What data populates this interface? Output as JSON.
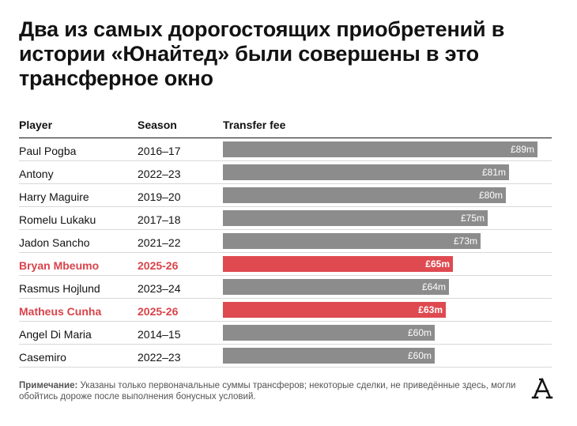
{
  "title": "Два из самых дорогостоящих приобретений в истории «Юнайтед» были совершены в это трансферное окно",
  "headers": {
    "player": "Player",
    "season": "Season",
    "fee": "Transfer fee"
  },
  "colors": {
    "bar": "#8c8c8c",
    "highlight": "#de4a50",
    "highlight_text": "#d9434a"
  },
  "chart_data": {
    "type": "bar",
    "orientation": "horizontal",
    "title": "Два из самых дорогостоящих приобретений в истории «Юнайтед» были совершены в это трансферное окно",
    "xlabel": "Transfer fee",
    "unit": "£m",
    "xlim": [
      0,
      89
    ],
    "rows": [
      {
        "player": "Paul Pogba",
        "season": "2016–17",
        "value": 89,
        "label": "£89m",
        "highlight": false
      },
      {
        "player": "Antony",
        "season": "2022–23",
        "value": 81,
        "label": "£81m",
        "highlight": false
      },
      {
        "player": "Harry Maguire",
        "season": "2019–20",
        "value": 80,
        "label": "£80m",
        "highlight": false
      },
      {
        "player": "Romelu Lukaku",
        "season": "2017–18",
        "value": 75,
        "label": "£75m",
        "highlight": false
      },
      {
        "player": "Jadon Sancho",
        "season": "2021–22",
        "value": 73,
        "label": "£73m",
        "highlight": false
      },
      {
        "player": "Bryan Mbeumo",
        "season": "2025-26",
        "value": 65,
        "label": "£65m",
        "highlight": true
      },
      {
        "player": "Rasmus Hojlund",
        "season": "2023–24",
        "value": 64,
        "label": "£64m",
        "highlight": false
      },
      {
        "player": "Matheus Cunha",
        "season": "2025-26",
        "value": 63,
        "label": "£63m",
        "highlight": true
      },
      {
        "player": "Angel Di Maria",
        "season": "2014–15",
        "value": 60,
        "label": "£60m",
        "highlight": false
      },
      {
        "player": "Casemiro",
        "season": "2022–23",
        "value": 60,
        "label": "£60m",
        "highlight": false
      }
    ]
  },
  "note": {
    "label": "Примечание:",
    "text": " Указаны только первоначальные суммы трансферов; некоторые сделки, не приведённые здесь, могли обойтись дороже после выполнения бонусных условий."
  },
  "logo": {
    "icon": "athletic-logo-icon"
  }
}
